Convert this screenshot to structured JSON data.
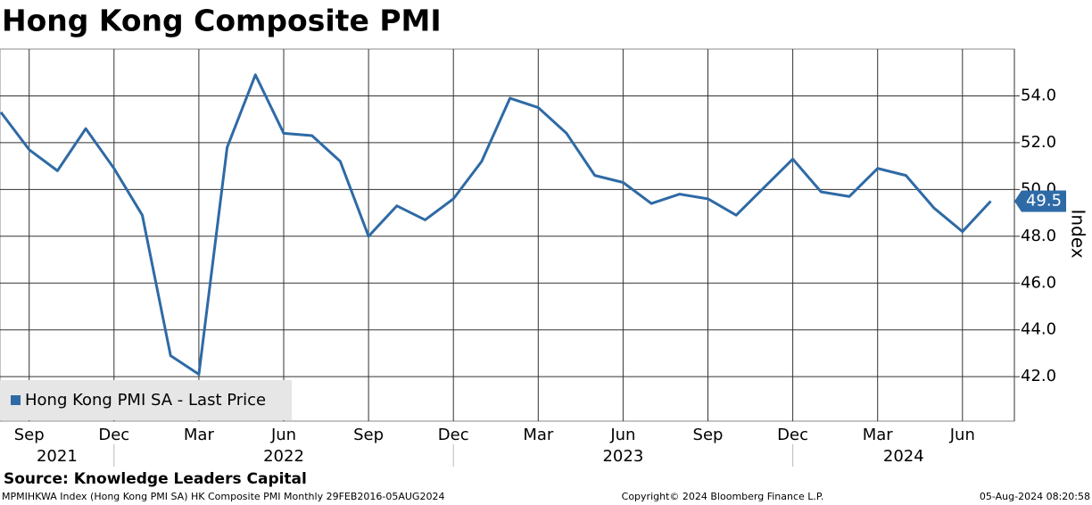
{
  "chart_data": {
    "type": "line",
    "title": "Hong Kong Composite PMI",
    "y_axis_label": "Index",
    "source": "Source: Knowledge Leaders Capital",
    "footer_left": "MPMIHKWA Index (Hong Kong PMI SA) HK Composite PMI  Monthly 29FEB2016-05AUG2024",
    "footer_center": "Copyright© 2024 Bloomberg Finance L.P.",
    "footer_right": "05-Aug-2024 08:20:58",
    "x": [
      "2021-08",
      "2021-09",
      "2021-10",
      "2021-11",
      "2021-12",
      "2022-01",
      "2022-02",
      "2022-03",
      "2022-04",
      "2022-05",
      "2022-06",
      "2022-07",
      "2022-08",
      "2022-09",
      "2022-10",
      "2022-11",
      "2022-12",
      "2023-01",
      "2023-02",
      "2023-03",
      "2023-04",
      "2023-05",
      "2023-06",
      "2023-07",
      "2023-08",
      "2023-09",
      "2023-10",
      "2023-11",
      "2023-12",
      "2024-01",
      "2024-02",
      "2024-03",
      "2024-04",
      "2024-05",
      "2024-06",
      "2024-07"
    ],
    "series": [
      {
        "name": "Hong Kong PMI SA - Last Price",
        "color": "#2e6aa6",
        "values": [
          53.3,
          51.7,
          50.8,
          52.6,
          50.9,
          48.9,
          42.9,
          42.1,
          51.8,
          54.9,
          52.4,
          52.3,
          51.2,
          48.0,
          49.3,
          48.7,
          49.6,
          51.2,
          53.9,
          53.5,
          52.4,
          50.6,
          50.3,
          49.4,
          49.8,
          49.6,
          48.9,
          50.1,
          51.3,
          49.9,
          49.7,
          50.9,
          50.6,
          49.2,
          48.2,
          49.5
        ]
      }
    ],
    "xticks": [
      {
        "value": "2021-09",
        "label": "Sep"
      },
      {
        "value": "2021-12",
        "label": "Dec"
      },
      {
        "value": "2022-03",
        "label": "Mar"
      },
      {
        "value": "2022-06",
        "label": "Jun"
      },
      {
        "value": "2022-09",
        "label": "Sep"
      },
      {
        "value": "2022-12",
        "label": "Dec"
      },
      {
        "value": "2023-03",
        "label": "Mar"
      },
      {
        "value": "2023-06",
        "label": "Jun"
      },
      {
        "value": "2023-09",
        "label": "Sep"
      },
      {
        "value": "2023-12",
        "label": "Dec"
      },
      {
        "value": "2024-03",
        "label": "Mar"
      },
      {
        "value": "2024-06",
        "label": "Jun"
      }
    ],
    "years": [
      "2021",
      "2022",
      "2023",
      "2024"
    ],
    "ylim": [
      40.1,
      56.0
    ],
    "yticks": [
      {
        "value": 42,
        "label": "42.0"
      },
      {
        "value": 44,
        "label": "44.0"
      },
      {
        "value": 46,
        "label": "46.0"
      },
      {
        "value": 48,
        "label": "48.0"
      },
      {
        "value": 50,
        "label": "50.0"
      },
      {
        "value": 52,
        "label": "52.0"
      },
      {
        "value": 54,
        "label": "54.0"
      }
    ],
    "grid": true
  }
}
